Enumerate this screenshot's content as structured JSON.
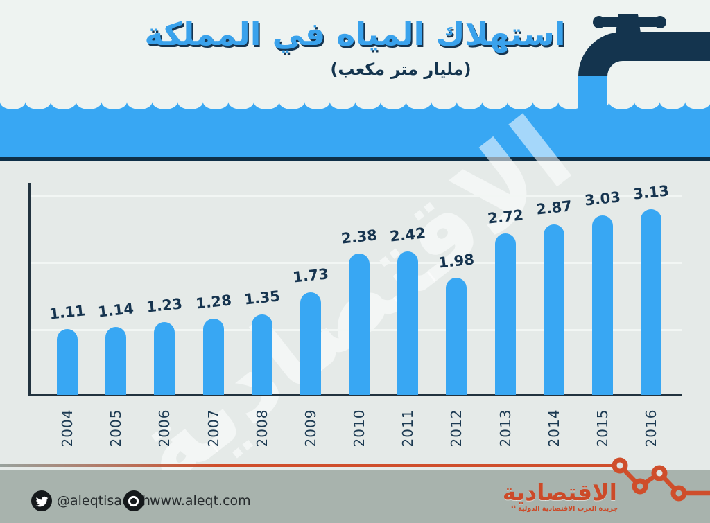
{
  "header": {
    "title": "استهلاك المياه في المملكة",
    "subtitle": "(مليار متر مكعب)"
  },
  "chart_data": {
    "type": "bar",
    "title": "استهلاك المياه في المملكة",
    "subtitle_unit": "(مليار متر مكعب)",
    "categories": [
      "2004",
      "2005",
      "2006",
      "2007",
      "2008",
      "2009",
      "2010",
      "2011",
      "2012",
      "2013",
      "2014",
      "2015",
      "2016"
    ],
    "values": [
      1.11,
      1.14,
      1.23,
      1.28,
      1.35,
      1.73,
      2.38,
      2.42,
      1.98,
      2.72,
      2.87,
      3.03,
      3.13
    ],
    "xlabel": "",
    "ylabel": "",
    "ylim": [
      0,
      3.5
    ],
    "grid": true,
    "gridline_count": 3,
    "legend": false,
    "bar_color": "#38a7f3",
    "value_label_color": "#16344f"
  },
  "watermark": {
    "text": "الاقتصادية"
  },
  "graphics": {
    "faucet_icon": "water-faucet",
    "wave_icon": "water-wave",
    "zigzag_icon": "line-chart-decoration"
  },
  "footer": {
    "twitter_icon": "twitter-bird",
    "twitter_handle": "@aleqtisadiah",
    "website_icon": "lens-ring",
    "website": "www.aleqt.com"
  },
  "logo": {
    "name": "الاقتصادية",
    "tagline": "جريدة العرب الاقتصادية الدولية",
    "quote_marks": "❛❛"
  },
  "colors": {
    "blue": "#38a7f3",
    "navy": "#14344e",
    "red": "#cc4a28",
    "footer_bg": "#a8b3ad",
    "bg_top": "#eef3f1",
    "bg_chart": "#e5eae8"
  }
}
